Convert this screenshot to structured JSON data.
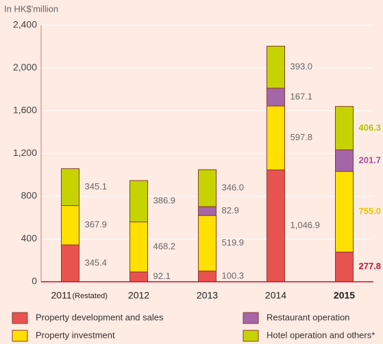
{
  "chart_data": {
    "type": "stacked_bar",
    "y_axis_label": "In HK$'million",
    "categories": [
      "2011",
      "2012",
      "2013",
      "2014",
      "2015"
    ],
    "category_note": "(Restated)",
    "highlight_index": 4,
    "series": [
      {
        "name": "Property development and sales",
        "color": "#e8534f",
        "label_color": "#c8102e",
        "values": [
          345.4,
          92.1,
          100.3,
          1046.9,
          277.8
        ],
        "value_labels": [
          "345.4",
          "92.1",
          "100.3",
          "1,046.9",
          "277.8"
        ]
      },
      {
        "name": "Property investment",
        "color": "#ffe000",
        "label_color": "#f2c200",
        "values": [
          367.9,
          468.2,
          519.9,
          597.8,
          755.0
        ],
        "value_labels": [
          "367.9",
          "468.2",
          "519.9",
          "597.8",
          "755.0"
        ]
      },
      {
        "name": "Restaurant operation",
        "color": "#a566a8",
        "label_color": "#a0519c",
        "values": [
          null,
          null,
          82.9,
          167.1,
          201.7
        ],
        "value_labels": [
          null,
          null,
          "82.9",
          "167.1",
          "201.7"
        ]
      },
      {
        "name": "Hotel operation and others*",
        "color": "#c6d300",
        "label_color": "#b5c300",
        "values": [
          345.1,
          386.9,
          346.0,
          393.0,
          406.3
        ],
        "value_labels": [
          "345.1",
          "386.9",
          "346.0",
          "393.0",
          "406.3"
        ]
      }
    ],
    "ylim": [
      0,
      2400
    ],
    "yticks": [
      0,
      400,
      800,
      {
        "value": 1200,
        "label": "1,200"
      },
      {
        "value": 1600,
        "label": "1,600"
      },
      {
        "value": 2000,
        "label": "2,000"
      },
      {
        "value": 2400,
        "label": "2,400"
      }
    ],
    "grid": true
  }
}
